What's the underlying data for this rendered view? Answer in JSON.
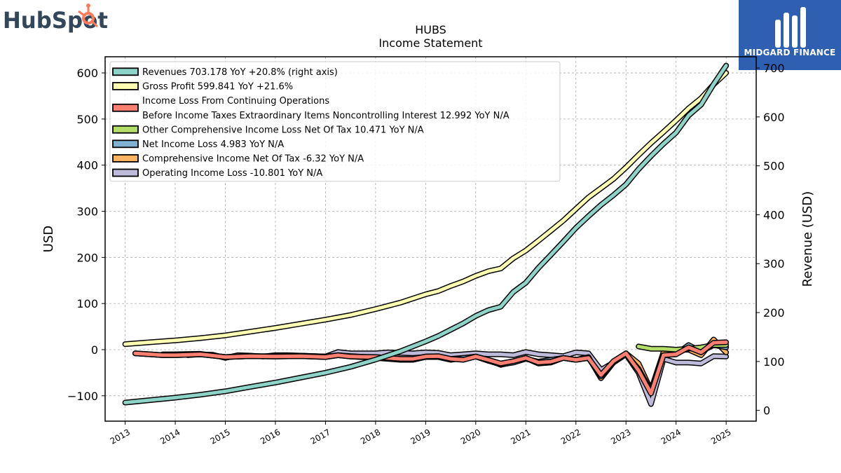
{
  "logos": {
    "left_text": "HubSpot",
    "left_icon": "hubspot-sprocket-icon",
    "right_text": "MIDGARD FINANCE",
    "right_icon": "midgard-m-icon"
  },
  "colors": {
    "revenues": "#8dd3c7",
    "gross_profit": "#ffffb3",
    "pretax": "#fb8072",
    "oci": "#b3de69",
    "net_income": "#80b1d3",
    "comprehensive": "#fdb462",
    "operating": "#bebada",
    "logo_right_bg": "#2f5fb0",
    "hubspot_dark": "#33475b",
    "hubspot_orange": "#ff7a59"
  },
  "chart_data": {
    "type": "line",
    "title": "HUBS",
    "subtitle": "Income Statement",
    "ylabel": "USD",
    "y2label": "Revenue (USD)",
    "xlabel": "",
    "xlim": [
      2012.6,
      2025.6
    ],
    "ylim": [
      -155,
      635
    ],
    "y2lim": [
      -22,
      723
    ],
    "x_ticks": [
      "2013",
      "2014",
      "2015",
      "2016",
      "2017",
      "2018",
      "2019",
      "2020",
      "2021",
      "2022",
      "2023",
      "2024",
      "2025"
    ],
    "y_ticks": [
      -100,
      0,
      100,
      200,
      300,
      400,
      500,
      600
    ],
    "y_tick_labels": [
      "−100",
      "0",
      "100",
      "200",
      "300",
      "400",
      "500",
      "600"
    ],
    "y2_ticks": [
      0,
      100,
      200,
      300,
      400,
      500,
      600,
      700
    ],
    "grid": true,
    "legend_position": "top-left",
    "series": [
      {
        "key": "revenues",
        "name": "Revenues  703.178 YoY +20.8% (right axis)",
        "axis": "right",
        "x": [
          2013.0,
          2013.5,
          2014.0,
          2014.5,
          2015.0,
          2015.5,
          2016.0,
          2016.5,
          2017.0,
          2017.5,
          2018.0,
          2018.5,
          2019.0,
          2019.25,
          2019.5,
          2019.75,
          2020.0,
          2020.25,
          2020.5,
          2020.75,
          2021.0,
          2021.25,
          2021.5,
          2021.75,
          2022.0,
          2022.25,
          2022.5,
          2022.75,
          2023.0,
          2023.25,
          2023.5,
          2023.75,
          2024.0,
          2024.25,
          2024.5,
          2024.75,
          2025.0
        ],
        "y": [
          16,
          21,
          26,
          32,
          39,
          48,
          57,
          67,
          77,
          89,
          104,
          121,
          141,
          152,
          165,
          178,
          193,
          205,
          212,
          242,
          261,
          291,
          318,
          345,
          373,
          397,
          420,
          440,
          462,
          493,
          520,
          545,
          568,
          603,
          625,
          667,
          705
        ]
      },
      {
        "key": "gross_profit",
        "name": "Gross Profit  599.841 YoY +21.6%",
        "axis": "left",
        "x": [
          2013.0,
          2013.5,
          2014.0,
          2014.5,
          2015.0,
          2015.5,
          2016.0,
          2016.5,
          2017.0,
          2017.5,
          2018.0,
          2018.5,
          2019.0,
          2019.25,
          2019.5,
          2019.75,
          2020.0,
          2020.25,
          2020.5,
          2020.75,
          2021.0,
          2021.25,
          2021.5,
          2021.75,
          2022.0,
          2022.25,
          2022.5,
          2022.75,
          2023.0,
          2023.25,
          2023.5,
          2023.75,
          2024.0,
          2024.25,
          2024.5,
          2024.75,
          2025.0
        ],
        "y": [
          12,
          16,
          20,
          25,
          31,
          39,
          47,
          56,
          65,
          75,
          88,
          102,
          120,
          127,
          138,
          148,
          160,
          170,
          176,
          198,
          215,
          236,
          258,
          280,
          305,
          330,
          350,
          370,
          395,
          422,
          448,
          472,
          497,
          523,
          545,
          575,
          600
        ]
      },
      {
        "key": "pretax",
        "name": "Income Loss From Continuing Operations\nBefore Income Taxes Extraordinary Items Noncontrolling Interest  12.992 YoY N/A",
        "axis": "left",
        "x": [
          2013.2,
          2013.5,
          2013.75,
          2014.0,
          2014.5,
          2014.75,
          2015.0,
          2015.5,
          2016.0,
          2016.5,
          2017.0,
          2017.25,
          2017.5,
          2018.0,
          2018.5,
          2018.75,
          2019.0,
          2019.25,
          2019.5,
          2019.75,
          2020.0,
          2020.25,
          2020.5,
          2020.75,
          2021.0,
          2021.25,
          2021.5,
          2021.75,
          2022.0,
          2022.25,
          2022.5,
          2022.75,
          2023.0,
          2023.25,
          2023.5,
          2023.75,
          2024.0,
          2024.25,
          2024.5,
          2024.75,
          2025.0
        ],
        "y": [
          -8,
          -10,
          -12,
          -12,
          -10,
          -13,
          -16,
          -14,
          -15,
          -14,
          -16,
          -12,
          -15,
          -16,
          -20,
          -20,
          -15,
          -14,
          -20,
          -22,
          -15,
          -22,
          -30,
          -25,
          -18,
          -28,
          -26,
          -18,
          -22,
          -18,
          -55,
          -25,
          -8,
          -45,
          -95,
          -12,
          -10,
          5,
          -6,
          15,
          16
        ]
      },
      {
        "key": "oci",
        "name": "Other Comprehensive Income Loss Net Of Tax  10.471 YoY N/A",
        "axis": "left",
        "x": [
          2023.25,
          2023.5,
          2023.75,
          2024.0,
          2024.25,
          2024.5,
          2024.75,
          2025.0
        ],
        "y": [
          7,
          2,
          2,
          0,
          2,
          5,
          10,
          10
        ]
      },
      {
        "key": "net_income",
        "name": "Net Income Loss  4.983 YoY N/A",
        "axis": "left",
        "x": [
          2013.2,
          2013.5,
          2013.75,
          2014.0,
          2014.5,
          2014.75,
          2015.0,
          2015.5,
          2016.0,
          2016.5,
          2017.0,
          2017.25,
          2017.5,
          2018.0,
          2018.5,
          2018.75,
          2019.0,
          2019.25,
          2019.5,
          2019.75,
          2020.0,
          2020.25,
          2020.5,
          2020.75,
          2021.0,
          2021.25,
          2021.5,
          2021.75,
          2022.0,
          2022.25,
          2022.5,
          2022.75,
          2023.0,
          2023.25,
          2023.5,
          2023.75,
          2024.0,
          2024.25,
          2024.5,
          2024.75,
          2025.0
        ],
        "y": [
          -8,
          -10,
          -12,
          -12,
          -10,
          -13,
          -16,
          -14,
          -15,
          -14,
          -16,
          -12,
          -15,
          -18,
          -22,
          -22,
          -16,
          -16,
          -22,
          -18,
          -15,
          -24,
          -32,
          -28,
          -20,
          -26,
          -22,
          -18,
          -22,
          -18,
          -58,
          -26,
          -10,
          -42,
          -90,
          -12,
          -10,
          10,
          -4,
          10,
          5
        ]
      },
      {
        "key": "comprehensive",
        "name": "Comprehensive Income Net Of Tax  -6.32 YoY N/A",
        "axis": "left",
        "x": [
          2013.75,
          2014.0,
          2014.5,
          2014.75,
          2015.0,
          2015.5,
          2016.0,
          2016.5,
          2017.0,
          2017.25,
          2017.5,
          2018.0,
          2018.5,
          2018.75,
          2019.0,
          2019.25,
          2019.5,
          2019.75,
          2020.0,
          2020.25,
          2020.5,
          2020.75,
          2021.0,
          2021.25,
          2021.5,
          2021.75,
          2022.0,
          2022.25,
          2022.5,
          2022.75,
          2023.0,
          2023.25,
          2023.5,
          2023.75,
          2024.0,
          2024.25,
          2024.5,
          2024.75,
          2025.0
        ],
        "y": [
          -10,
          -10,
          -9,
          -13,
          -16,
          -14,
          -14,
          -13,
          -15,
          -12,
          -14,
          -17,
          -21,
          -21,
          -15,
          -15,
          -20,
          -18,
          -15,
          -22,
          -33,
          -27,
          -18,
          -30,
          -28,
          -18,
          -22,
          -16,
          -62,
          -28,
          -8,
          -30,
          -88,
          -5,
          -1,
          0,
          -12,
          22,
          -6
        ]
      },
      {
        "key": "operating",
        "name": "Operating Income Loss  -10.801 YoY N/A",
        "axis": "left",
        "x": [
          2014.25,
          2014.5,
          2014.75,
          2015.0,
          2015.25,
          2015.5,
          2015.75,
          2016.0,
          2016.25,
          2016.5,
          2016.75,
          2017.0,
          2017.25,
          2017.5,
          2017.75,
          2018.0,
          2018.25,
          2018.5,
          2018.75,
          2019.0,
          2019.25,
          2019.5,
          2019.75,
          2020.0,
          2020.25,
          2020.5,
          2020.75,
          2021.0,
          2021.25,
          2021.5,
          2021.75,
          2022.0,
          2022.25,
          2022.5,
          2022.75,
          2023.0,
          2023.25,
          2023.5,
          2023.75,
          2024.0,
          2024.25,
          2024.5,
          2024.75,
          2025.0
        ],
        "y": [
          -12,
          -10,
          -11,
          -18,
          -12,
          -13,
          -15,
          -12,
          -12,
          -13,
          -14,
          -15,
          -5,
          -8,
          -8,
          -8,
          -6,
          -7,
          -8,
          -6,
          -7,
          -12,
          -10,
          -8,
          -10,
          -10,
          -12,
          -5,
          -10,
          -12,
          -14,
          -6,
          -8,
          -44,
          -28,
          -10,
          -50,
          -118,
          -20,
          -28,
          -28,
          -30,
          -14,
          -15
        ]
      }
    ]
  }
}
